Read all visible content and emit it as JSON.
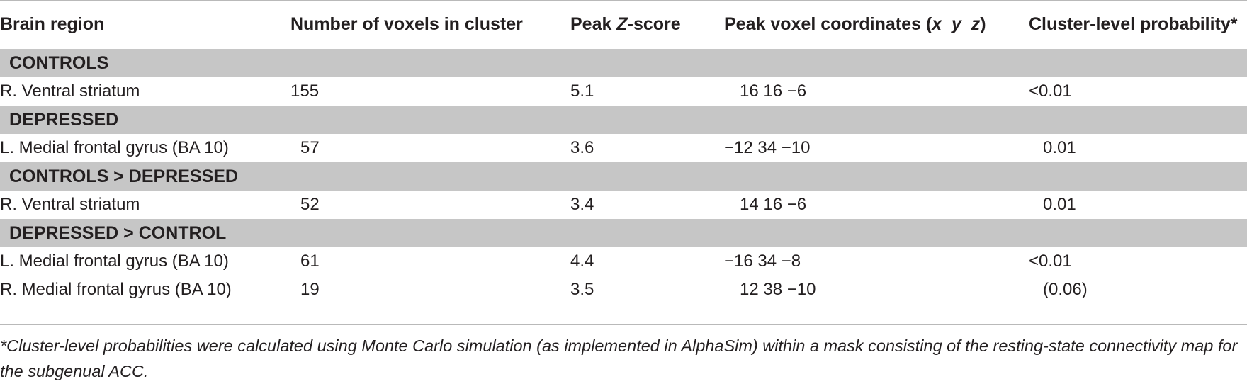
{
  "columns": [
    "Brain region",
    "Number of voxels in cluster",
    "Peak Z-score",
    "Peak voxel coordinates (x y z)",
    "Cluster-level probability*"
  ],
  "header": {
    "col1": "Brain region",
    "col2": "Number of voxels in cluster",
    "col3_prefix": "Peak ",
    "col3_italic": "Z",
    "col3_suffix": "-score",
    "col4_prefix": "Peak voxel coordinates (",
    "col4_italic": "x  y  z",
    "col4_suffix": ")",
    "col5": "Cluster-level probability*"
  },
  "groups": [
    {
      "label": "CONTROLS",
      "rows": [
        {
          "region": "R. Ventral striatum",
          "voxels": "155",
          "z": "5.1",
          "coords": "16 16 −6",
          "prob": "<0.01"
        }
      ]
    },
    {
      "label": "DEPRESSED",
      "rows": [
        {
          "region": "L. Medial frontal gyrus (BA 10)",
          "voxels": "57",
          "z": "3.6",
          "coords": "−12 34 −10",
          "prob": "0.01"
        }
      ]
    },
    {
      "label": "CONTROLS > DEPRESSED",
      "rows": [
        {
          "region": "R. Ventral striatum",
          "voxels": "52",
          "z": "3.4",
          "coords": "14 16 −6",
          "prob": "0.01"
        }
      ]
    },
    {
      "label": "DEPRESSED > CONTROL",
      "rows": [
        {
          "region": "L. Medial frontal gyrus (BA 10)",
          "voxels": "61",
          "z": "4.4",
          "coords": "−16 34 −8",
          "prob": "<0.01"
        },
        {
          "region": "R. Medial frontal gyrus (BA 10)",
          "voxels": "19",
          "z": "3.5",
          "coords": "12 38 −10",
          "prob": "(0.06)"
        }
      ]
    }
  ],
  "footnote": "*Cluster-level probabilities were calculated using Monte Carlo simulation (as implemented in AlphaSim) within a mask consisting of the resting-state connectivity map for the subgenual ACC.",
  "colors": {
    "group_band": "#c6c6c6",
    "rule": "#b9b9b9",
    "text": "#231f20"
  }
}
